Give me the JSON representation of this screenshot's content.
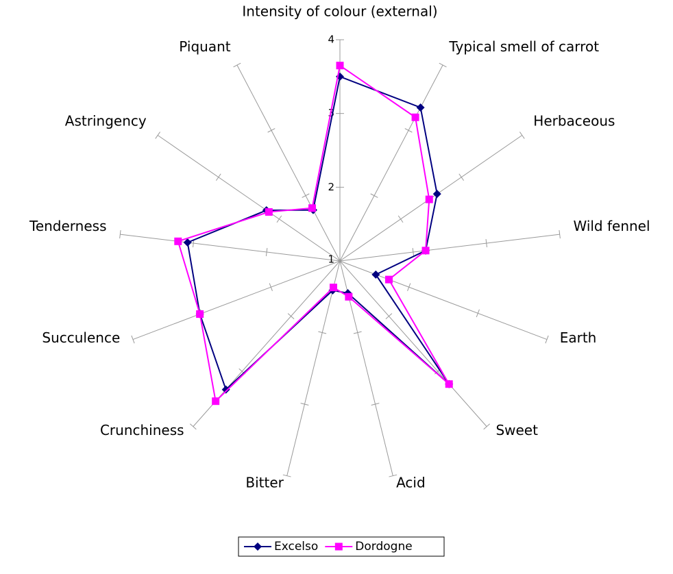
{
  "chart_data": {
    "type": "radar",
    "categories": [
      "Intensity of colour (external)",
      "Typical smell of carrot",
      "Herbaceous",
      "Wild fennel",
      "Earth",
      "Sweet",
      "Acid",
      "Bitter",
      "Crunchiness",
      "Succulence",
      "Tenderness",
      "Astringency",
      "Piquant"
    ],
    "series": [
      {
        "name": "Excelso",
        "color": "#000080",
        "marker": "diamond",
        "values": [
          3.5,
          3.35,
          2.6,
          2.17,
          1.52,
          3.23,
          1.45,
          1.41,
          3.33,
          3.03,
          3.08,
          2.21,
          1.78
        ]
      },
      {
        "name": "Dordogne",
        "color": "#ff00ff",
        "marker": "square",
        "values": [
          3.65,
          3.2,
          2.47,
          2.17,
          1.71,
          3.23,
          1.5,
          1.37,
          3.54,
          3.03,
          3.21,
          2.17,
          1.81
        ]
      }
    ],
    "ylim": [
      1,
      4
    ],
    "yticks": [
      1,
      2,
      3,
      4
    ],
    "legend": "bottom"
  }
}
